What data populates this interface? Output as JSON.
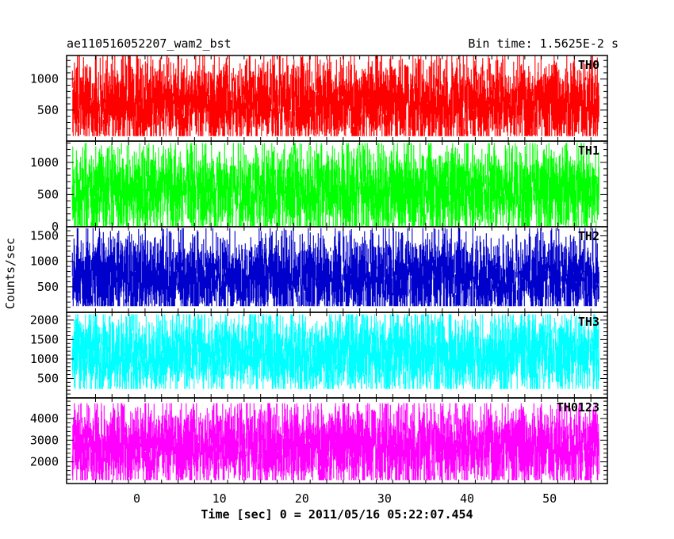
{
  "header": {
    "title": "ae110516052207_wam2_bst",
    "bin_time": "Bin time: 1.5625E-2 s"
  },
  "axes": {
    "ylabel": "Counts/sec",
    "xlabel": "Time [sec] 0 = 2011/05/16 05:22:07.454",
    "x_tick_labels": [
      "0",
      "10",
      "20",
      "30",
      "40",
      "50"
    ]
  },
  "chart_data": {
    "type": "line",
    "xlabel": "Time [sec] 0 = 2011/05/16 05:22:07.454",
    "ylabel": "Counts/sec",
    "xlim": [
      -8.5,
      57
    ],
    "x_range": [
      -7.8,
      56
    ],
    "x_ticks": [
      0,
      10,
      20,
      30,
      40,
      50
    ],
    "panels": [
      {
        "name": "TH0",
        "color": "#ff0000",
        "ylim": [
          0,
          1380
        ],
        "yticks": [
          500,
          1000
        ],
        "mean": 620,
        "min": 80,
        "max": 1380
      },
      {
        "name": "TH1",
        "color": "#00ff00",
        "ylim": [
          0,
          1330
        ],
        "yticks": [
          0,
          500,
          1000
        ],
        "mean": 560,
        "min": 10,
        "max": 1300
      },
      {
        "name": "TH2",
        "color": "#0000cc",
        "ylim": [
          0,
          1680
        ],
        "yticks": [
          500,
          1000,
          1500
        ],
        "mean": 700,
        "min": 120,
        "max": 1650
      },
      {
        "name": "TH3",
        "color": "#00ffff",
        "ylim": [
          0,
          2200
        ],
        "yticks": [
          500,
          1000,
          1500,
          2000
        ],
        "mean": 1150,
        "min": 230,
        "max": 2150
      },
      {
        "name": "TH0123",
        "color": "#ff00ff",
        "ylim": [
          1000,
          4950
        ],
        "yticks": [
          2000,
          3000,
          4000
        ],
        "mean": 2750,
        "min": 1150,
        "max": 4700
      }
    ]
  }
}
